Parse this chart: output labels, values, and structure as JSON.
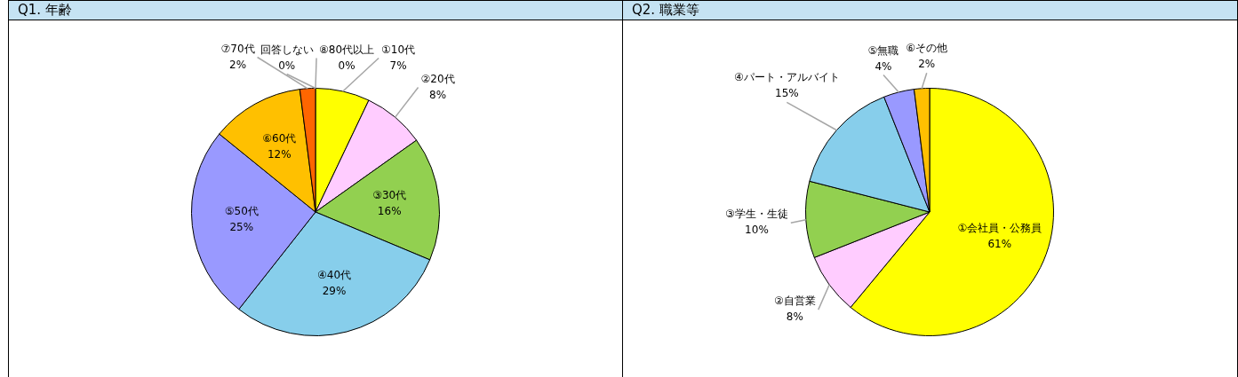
{
  "chart_data": [
    {
      "type": "pie",
      "title": "Q1. 年齢",
      "categories": [
        "①10代",
        "②20代",
        "③30代",
        "④40代",
        "⑤50代",
        "⑥60代",
        "⑦70代",
        "⑧80代以上",
        "回答しない"
      ],
      "values": [
        7,
        8,
        16,
        29,
        25,
        12,
        2,
        0,
        0
      ],
      "colors": [
        "#ffff00",
        "#ffccff",
        "#92d050",
        "#87ceeb",
        "#9999ff",
        "#ffc000",
        "#ff6600",
        "#c00000",
        "#000000"
      ],
      "value_labels": [
        "7%",
        "8%",
        "16%",
        "29%",
        "25%",
        "12%",
        "2%",
        "0%",
        "0%"
      ]
    },
    {
      "type": "pie",
      "title": "Q2. 職業等",
      "categories": [
        "①会社員・公務員",
        "②自営業",
        "③学生・生徒",
        "④パート・アルバイト",
        "⑤無職",
        "⑥その他"
      ],
      "values": [
        61,
        8,
        10,
        15,
        4,
        2
      ],
      "colors": [
        "#ffff00",
        "#ffccff",
        "#92d050",
        "#87ceeb",
        "#9999ff",
        "#ffc000"
      ],
      "value_labels": [
        "61%",
        "8%",
        "10%",
        "15%",
        "4%",
        "2%"
      ]
    }
  ]
}
